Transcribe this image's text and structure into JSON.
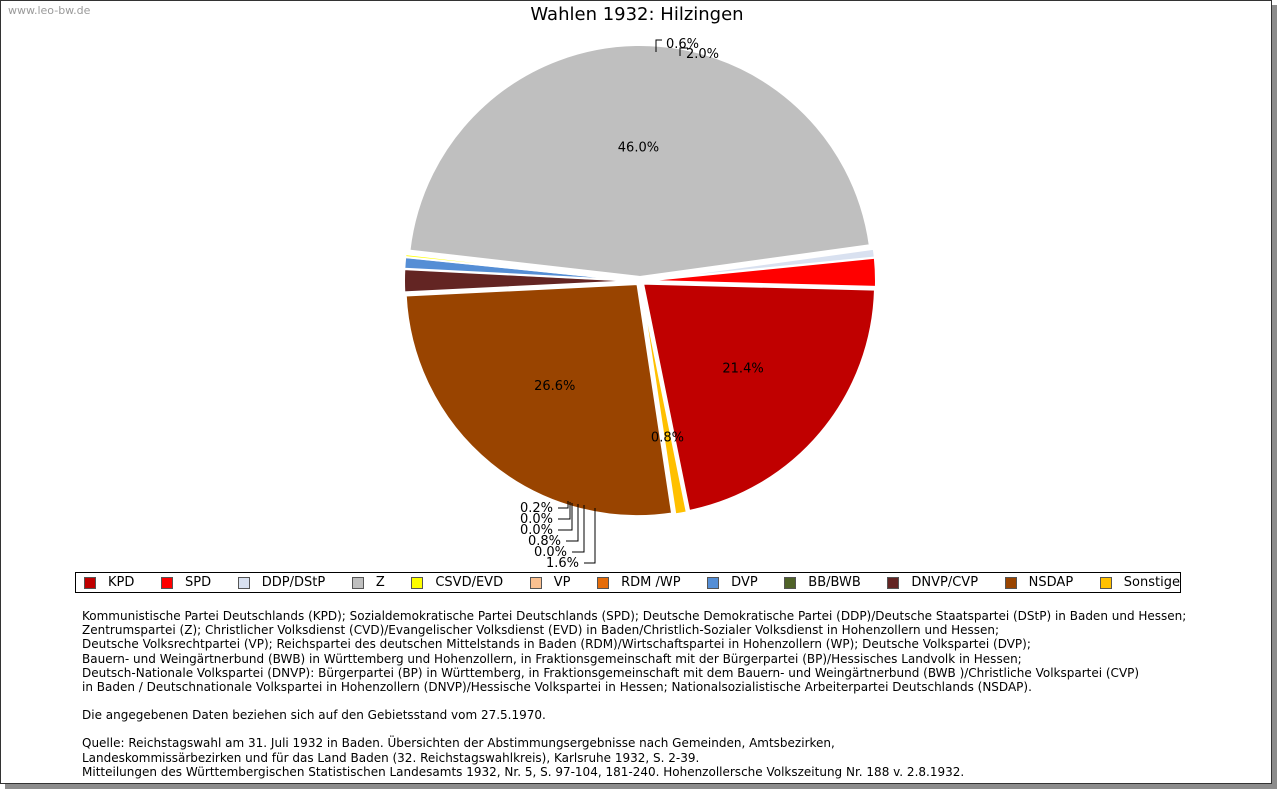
{
  "watermark": "www.leo-bw.de",
  "chart_data": {
    "type": "pie",
    "title": "Wahlen 1932: Hilzingen",
    "slices": [
      {
        "name": "KPD",
        "value": 21.4,
        "label": "21.4%",
        "color": "#c00000"
      },
      {
        "name": "Sonstige",
        "value": 0.8,
        "label": "0.8%",
        "color": "#ffc000"
      },
      {
        "name": "NSDAP",
        "value": 26.6,
        "label": "26.6%",
        "color": "#994400"
      },
      {
        "name": "DNVP/CVP",
        "value": 1.6,
        "label": "1.6%",
        "color": "#632523"
      },
      {
        "name": "BB/BWB",
        "value": 0.0,
        "label": "0.0%",
        "color": "#4f6228"
      },
      {
        "name": "DVP",
        "value": 0.8,
        "label": "0.8%",
        "color": "#558ed5"
      },
      {
        "name": "RDM /WP",
        "value": 0.0,
        "label": "0.0%",
        "color": "#e46c0a"
      },
      {
        "name": "VP",
        "value": 0.0,
        "label": "0.0%",
        "color": "#fac090"
      },
      {
        "name": "CSVD/EVD",
        "value": 0.2,
        "label": "0.2%",
        "color": "#ffff00"
      },
      {
        "name": "Z",
        "value": 46.0,
        "label": "46.0%",
        "color": "#bfbfbf"
      },
      {
        "name": "DDP/DStP",
        "value": 0.6,
        "label": "0.6%",
        "color": "#d9e1f0"
      },
      {
        "name": "SPD",
        "value": 2.0,
        "label": "2.0%",
        "color": "#ff0000"
      }
    ],
    "legend": [
      {
        "name": "KPD",
        "color": "#c00000"
      },
      {
        "name": "SPD",
        "color": "#ff0000"
      },
      {
        "name": "DDP/DStP",
        "color": "#d9e1f0"
      },
      {
        "name": "Z",
        "color": "#bfbfbf"
      },
      {
        "name": "CSVD/EVD",
        "color": "#ffff00"
      },
      {
        "name": "VP",
        "color": "#fac090"
      },
      {
        "name": "RDM /WP",
        "color": "#e46c0a"
      },
      {
        "name": "DVP",
        "color": "#558ed5"
      },
      {
        "name": "BB/BWB",
        "color": "#4f6228"
      },
      {
        "name": "DNVP/CVP",
        "color": "#632523"
      },
      {
        "name": "NSDAP",
        "color": "#994400"
      },
      {
        "name": "Sonstige",
        "color": "#ffc000"
      }
    ],
    "legend_position": "bottom"
  },
  "notes": {
    "abbreviations": [
      "Kommunistische Partei Deutschlands (KPD); Sozialdemokratische Partei Deutschlands (SPD); Deutsche Demokratische Partei (DDP)/Deutsche Staatspartei (DStP) in Baden und Hessen;",
      "Zentrumspartei (Z); Christlicher Volksdienst (CVD)/Evangelischer Volksdienst (EVD) in Baden/Christlich-Sozialer Volksdienst in Hohenzollern und Hessen;",
      "Deutsche Volksrechtpartei (VP); Reichspartei des deutschen Mittelstands in Baden (RDM)/Wirtschaftspartei in Hohenzollern (WP); Deutsche Volkspartei (DVP);",
      "Bauern- und Weingärtnerbund (BWB) in Württemberg und Hohenzollern, in Fraktionsgemeinschaft mit der Bürgerpartei (BP)/Hessisches Landvolk in Hessen;",
      "Deutsch-Nationale Volkspartei (DNVP): Bürgerpartei (BP) in Württemberg, in Fraktionsgemeinschaft mit dem Bauern- und Weingärtnerbund (BWB )/Christliche Volkspartei (CVP)",
      "in Baden / Deutschnationale Volkspartei in Hohenzollern (DNVP)/Hessische Volkspartei in Hessen; Nationalsozialistische Arbeiterpartei Deutschlands (NSDAP)."
    ],
    "territory": "Die angegebenen Daten beziehen sich auf den Gebietsstand vom 27.5.1970.",
    "source": [
      "Quelle: Reichstagswahl am 31. Juli 1932 in Baden. Übersichten der Abstimmungsergebnisse nach Gemeinden, Amtsbezirken,",
      "Landeskommissärbezirken und für das Land Baden (32. Reichstagswahlkreis), Karlsruhe 1932, S. 2-39.",
      "Mitteilungen des Württembergischen Statistischen Landesamts 1932, Nr. 5, S. 97-104, 181-240. Hohenzollersche Volkszeitung Nr. 188 v. 2.8.1932."
    ]
  }
}
